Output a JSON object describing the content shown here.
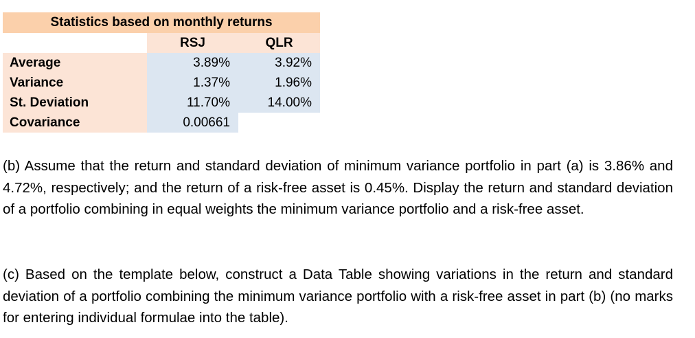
{
  "stats_table": {
    "title": "Statistics based on monthly returns",
    "columns": [
      "RSJ",
      "QLR"
    ],
    "rows": [
      {
        "label": "Average",
        "rsj": "3.89%",
        "qlr": "3.92%"
      },
      {
        "label": "Variance",
        "rsj": "1.37%",
        "qlr": "1.96%"
      },
      {
        "label": "St. Deviation",
        "rsj": "11.70%",
        "qlr": "14.00%"
      }
    ],
    "covariance": {
      "label": "Covariance",
      "value": "0.00661"
    }
  },
  "paragraphs": {
    "b": "(b) Assume that the return and standard deviation of minimum variance portfolio in part (a) is 3.86% and 4.72%, respectively; and the return of a risk-free asset is 0.45%. Display the return and standard deviation of a portfolio combining in equal weights the minimum variance portfolio and a risk-free asset.",
    "c": "(c) Based on the template below, construct a Data Table showing variations in the return and standard deviation of a portfolio combining the minimum variance portfolio with a risk-free asset in part (b) (no marks for entering individual formulae into the table)."
  }
}
